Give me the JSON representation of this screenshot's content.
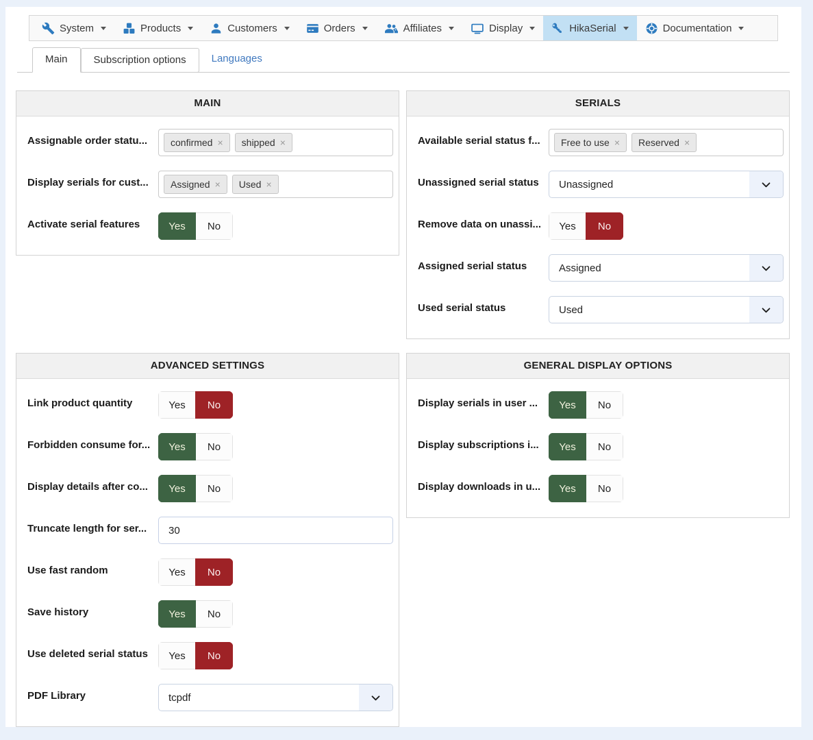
{
  "colors": {
    "page_background": "#eaf1fa",
    "menu_icon_blue": "#2e7bbf",
    "active_menu_highlight": "#c2e0f4",
    "toggle_yes_green": "#3d6343",
    "toggle_no_red": "#9e2226",
    "link_blue": "#4079bf"
  },
  "toggle_labels": {
    "yes": "Yes",
    "no": "No"
  },
  "menubar": {
    "items": [
      {
        "label": "System",
        "icon": "wrench-icon",
        "active": false
      },
      {
        "label": "Products",
        "icon": "products-icon",
        "active": false
      },
      {
        "label": "Customers",
        "icon": "customer-icon",
        "active": false
      },
      {
        "label": "Orders",
        "icon": "orders-icon",
        "active": false
      },
      {
        "label": "Affiliates",
        "icon": "affiliates-icon",
        "active": false
      },
      {
        "label": "Display",
        "icon": "display-icon",
        "active": false
      },
      {
        "label": "HikaSerial",
        "icon": "key-icon",
        "active": true
      },
      {
        "label": "Documentation",
        "icon": "documentation-icon",
        "active": false
      }
    ]
  },
  "tabs": [
    {
      "label": "Main",
      "style": "active"
    },
    {
      "label": "Subscription options",
      "style": "boxed"
    },
    {
      "label": "Languages",
      "style": "link"
    }
  ],
  "panels": [
    {
      "title": "MAIN",
      "fields": [
        {
          "label": "Assignable order statu...",
          "type": "tags",
          "tags": [
            "confirmed",
            "shipped"
          ]
        },
        {
          "label": "Display serials for cust...",
          "type": "tags",
          "tags": [
            "Assigned",
            "Used"
          ]
        },
        {
          "label": "Activate serial features",
          "type": "toggle",
          "value": "Yes"
        }
      ]
    },
    {
      "title": "SERIALS",
      "fields": [
        {
          "label": "Available serial status f...",
          "type": "tags",
          "tags": [
            "Free to use",
            "Reserved"
          ]
        },
        {
          "label": "Unassigned serial status",
          "type": "select",
          "value": "Unassigned"
        },
        {
          "label": "Remove data on unassi...",
          "type": "toggle",
          "value": "No"
        },
        {
          "label": "Assigned serial status",
          "type": "select",
          "value": "Assigned"
        },
        {
          "label": "Used serial status",
          "type": "select",
          "value": "Used"
        }
      ]
    },
    {
      "title": "ADVANCED SETTINGS",
      "fields": [
        {
          "label": "Link product quantity",
          "type": "toggle",
          "value": "No"
        },
        {
          "label": "Forbidden consume for...",
          "type": "toggle",
          "value": "Yes"
        },
        {
          "label": "Display details after co...",
          "type": "toggle",
          "value": "Yes"
        },
        {
          "label": "Truncate length for ser...",
          "type": "text",
          "value": "30"
        },
        {
          "label": "Use fast random",
          "type": "toggle",
          "value": "No"
        },
        {
          "label": "Save history",
          "type": "toggle",
          "value": "Yes"
        },
        {
          "label": "Use deleted serial status",
          "type": "toggle",
          "value": "No"
        },
        {
          "label": "PDF Library",
          "type": "select",
          "value": "tcpdf"
        }
      ]
    },
    {
      "title": "GENERAL DISPLAY OPTIONS",
      "fields": [
        {
          "label": "Display serials in user ...",
          "type": "toggle",
          "value": "Yes"
        },
        {
          "label": "Display subscriptions i...",
          "type": "toggle",
          "value": "Yes"
        },
        {
          "label": "Display downloads in u...",
          "type": "toggle",
          "value": "Yes"
        }
      ]
    }
  ]
}
